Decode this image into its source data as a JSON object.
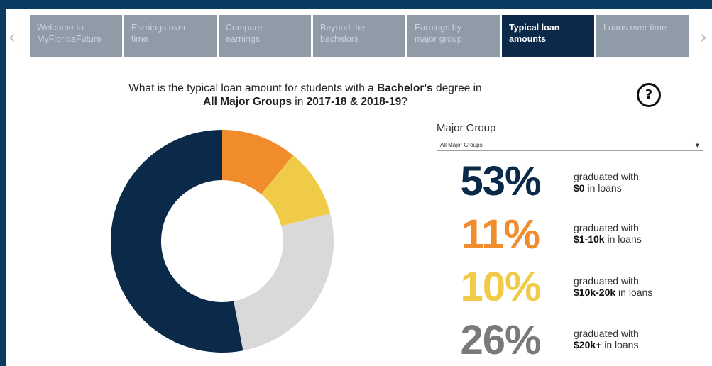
{
  "nav": {
    "prev_icon": "chevron-left-icon",
    "next_icon": "chevron-right-icon"
  },
  "tabs": [
    {
      "line1": "Welcome to",
      "line2": "MyFloridaFuture",
      "active": false
    },
    {
      "line1": "Earnings over",
      "line2": "time",
      "active": false
    },
    {
      "line1": "Compare",
      "line2": "earnings",
      "active": false
    },
    {
      "line1": "Beyond the",
      "line2": "bachelors",
      "active": false
    },
    {
      "line1": "Earnings by",
      "line2": "major group",
      "active": false
    },
    {
      "line1": "Typical loan",
      "line2": "amounts",
      "active": true
    },
    {
      "line1": "Loans over time",
      "line2": "",
      "active": false
    }
  ],
  "question": {
    "part1": "What is the typical loan amount for students with a ",
    "degree": "Bachelor's",
    "part2": " degree in",
    "group": "All Major Groups",
    "part3": " in ",
    "years": "2017-18 & 2018-19",
    "part4": "?"
  },
  "help_label": "?",
  "major_group": {
    "label": "Major Group",
    "selected": "All Major Groups"
  },
  "stats": [
    {
      "pct": "53%",
      "line1": "graduated with",
      "amount": "$0",
      "suffix": " in loans",
      "color": "#0b2a4a"
    },
    {
      "pct": "11%",
      "line1": "graduated with",
      "amount": "$1-10k",
      "suffix": " in loans",
      "color": "#f08c2b"
    },
    {
      "pct": "10%",
      "line1": "graduated with",
      "amount": "$10k-20k",
      "suffix": " in loans",
      "color": "#f0cb47"
    },
    {
      "pct": "26%",
      "line1": "graduated with",
      "amount": "$20k+",
      "suffix": " in loans",
      "color": "#7a7a7a"
    }
  ],
  "chart_data": {
    "type": "pie",
    "categories": [
      "$0",
      "$1-10k",
      "$10k-20k",
      "$20k+"
    ],
    "values": [
      53,
      11,
      10,
      26
    ],
    "colors": [
      "#0b2a4a",
      "#f08c2b",
      "#f0cb47",
      "#d9d9d9"
    ]
  }
}
